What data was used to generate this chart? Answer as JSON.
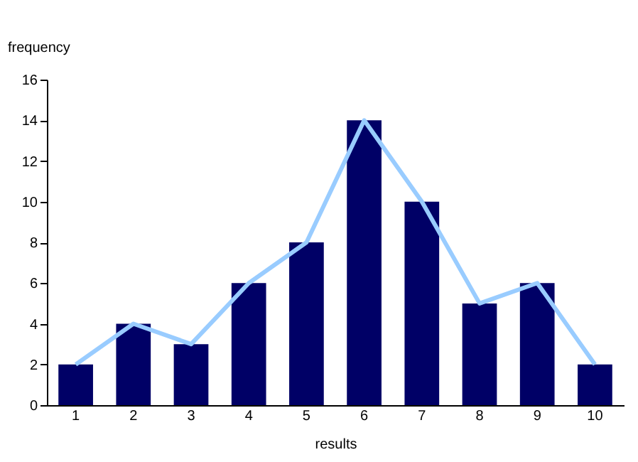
{
  "chart_data": {
    "type": "bar",
    "xlabel": "results",
    "ylabel": "frequency",
    "categories": [
      "1",
      "2",
      "3",
      "4",
      "5",
      "6",
      "7",
      "8",
      "9",
      "10"
    ],
    "series": [
      {
        "color": "#000066",
        "values": [
          2,
          4,
          3,
          6,
          8,
          14,
          10,
          5,
          6,
          2
        ]
      },
      {
        "type": "line",
        "color": "#99ccff",
        "values": [
          2,
          4,
          3,
          6,
          8,
          14,
          10,
          5,
          6,
          2
        ]
      }
    ],
    "ylim": [
      0,
      16
    ],
    "yticks": [
      0,
      2,
      4,
      6,
      8,
      10,
      12,
      14,
      16
    ],
    "grid": false
  }
}
